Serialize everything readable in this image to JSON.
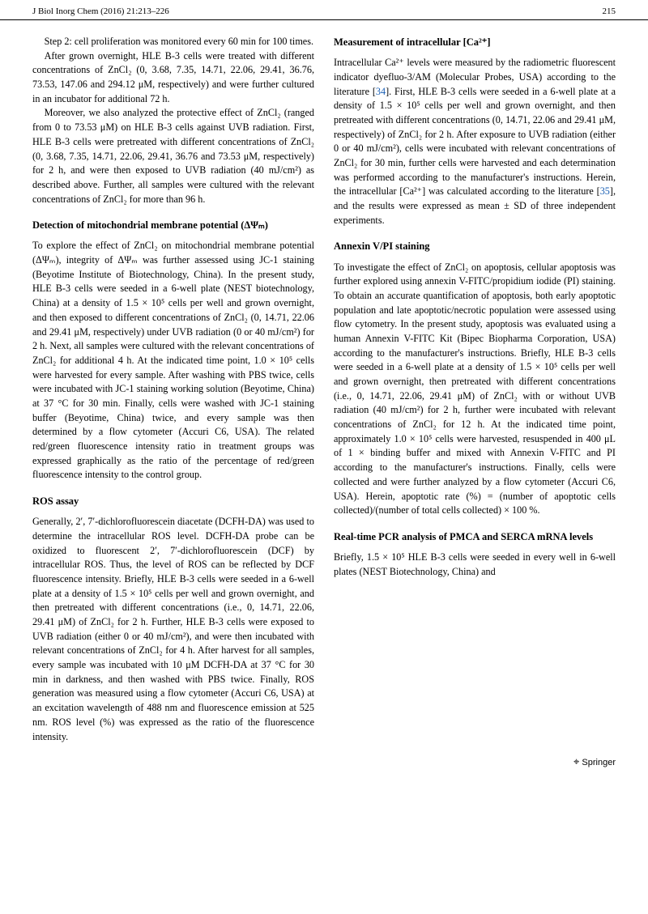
{
  "header": {
    "journal": "J Biol Inorg Chem (2016) 21:213–226",
    "page": "215"
  },
  "paragraphs": {
    "step2": "Step 2: cell proliferation was monitored every 60 min for 100 times.",
    "p1": "After grown overnight, HLE B-3 cells were treated with different concentrations of ZnCl₂ (0, 3.68, 7.35, 14.71, 22.06, 29.41, 36.76, 73.53, 147.06 and 294.12 μM, respectively) and were further cultured in an incubator for additional 72 h.",
    "p2": "Moreover, we also analyzed the protective effect of ZnCl₂ (ranged from 0 to 73.53 μM) on HLE B-3 cells against UVB radiation. First, HLE B-3 cells were pretreated with different concentrations of ZnCl₂ (0, 3.68, 7.35, 14.71, 22.06, 29.41, 36.76 and 73.53 μM, respectively) for 2 h, and were then exposed to UVB radiation (40 mJ/cm²) as described above. Further, all samples were cultured with the relevant concentrations of ZnCl₂ for more than 96 h.",
    "h1": "Detection of mitochondrial membrane potential (ΔΨₘ)",
    "p3": "To explore the effect of ZnCl₂ on mitochondrial membrane potential (ΔΨₘ), integrity of ΔΨₘ was further assessed using JC-1 staining (Beyotime Institute of Biotechnology, China). In the present study, HLE B-3 cells were seeded in a 6-well plate (NEST biotechnology, China) at a density of 1.5 × 10⁵ cells per well and grown overnight, and then exposed to different concentrations of ZnCl₂ (0, 14.71, 22.06 and 29.41 μM, respectively) under UVB radiation (0 or 40 mJ/cm²) for 2 h. Next, all samples were cultured with the relevant concentrations of ZnCl₂ for additional 4 h. At the indicated time point, 1.0 × 10⁵ cells were harvested for every sample. After washing with PBS twice, cells were incubated with JC-1 staining working solution (Beyotime, China) at 37 °C for 30 min. Finally, cells were washed with JC-1 staining buffer (Beyotime, China) twice, and every sample was then determined by a flow cytometer (Accuri C6, USA). The related red/green fluorescence intensity ratio in treatment groups was expressed graphically as the ratio of the percentage of red/green fluorescence intensity to the control group.",
    "h2": "ROS assay",
    "p4a": "Generally, 2′, 7′-dichlorofluorescein diacetate (DCFH-DA) was used to determine the intracellular ROS level. DCFH-DA probe can be oxidized to fluorescent 2′, 7′-dichlorofluorescein (DCF) by intracellular ROS. Thus, the level of ROS can be reflected by DCF fluorescence intensity. Briefly, HLE B-3 cells were seeded in a 6-well plate at a density of 1.5 × 10⁵ cells per well and grown overnight, and then pretreated with different concentrations (i.e., 0, 14.71, 22.06, 29.41 μM) of ZnCl₂ for 2 h. Further, HLE B-3 cells were exposed to UVB radiation (either 0 or 40 mJ/cm²), and were then incubated with relevant concentrations of ZnCl₂ for 4 h. After harvest for all samples, every sample was ",
    "p4b": "incubated with 10 μM DCFH-DA at 37 °C for 30 min in darkness, and then washed with PBS twice. Finally, ROS generation was measured using a flow cytometer (Accuri C6, USA) at an excitation wavelength of 488 nm and fluorescence emission at 525 nm. ROS level (%) was expressed as the ratio of the fluorescence intensity.",
    "h3": "Measurement of intracellular [Ca²⁺]",
    "p5a": "Intracellular Ca²⁺ levels were measured by the radiometric fluorescent indicator dyefluo-3/AM (Molecular Probes, USA) according to the literature [",
    "ref34": "34",
    "p5b": "]. First, HLE B-3 cells were seeded in a 6-well plate at a density of 1.5 × 10⁵ cells per well and grown overnight, and then pretreated with different concentrations (0, 14.71, 22.06 and 29.41 μM, respectively) of ZnCl₂ for 2 h. After exposure to UVB radiation (either 0 or 40 mJ/cm²), cells were incubated with relevant concentrations of ZnCl₂ for 30 min, further cells were harvested and each determination was performed according to the manufacturer's instructions. Herein, the intracellular [Ca²⁺] was calculated according to the literature [",
    "ref35": "35",
    "p5c": "], and the results were expressed as mean ± SD of three independent experiments.",
    "h4": "Annexin V/PI staining",
    "p6": "To investigate the effect of ZnCl₂ on apoptosis, cellular apoptosis was further explored using annexin V-FITC/propidium iodide (PI) staining. To obtain an accurate quantification of apoptosis, both early apoptotic population and late apoptotic/necrotic population were assessed using flow cytometry. In the present study, apoptosis was evaluated using a human Annexin V-FITC Kit (Bipec Biopharma Corporation, USA) according to the manufacturer's instructions. Briefly, HLE B-3 cells were seeded in a 6-well plate at a density of 1.5 × 10⁵ cells per well and grown overnight, then pretreated with different concentrations (i.e., 0, 14.71, 22.06, 29.41 μM) of ZnCl₂ with or without UVB radiation (40 mJ/cm²) for 2 h, further were incubated with relevant concentrations of ZnCl₂ for 12 h. At the indicated time point, approximately 1.0 × 10⁵ cells were harvested, resuspended in 400 μL of 1 × binding buffer and mixed with Annexin V-FITC and PI according to the manufacturer's instructions. Finally, cells were collected and were further analyzed by a flow cytometer (Accuri C6, USA). Herein, apoptotic rate (%) = (number of apoptotic cells collected)/(number of total cells collected) × 100 %.",
    "h5": "Real-time PCR analysis of PMCA and SERCA mRNA levels",
    "p7": "Briefly, 1.5 × 10⁵ HLE B-3 cells were seeded in every well in 6-well plates (NEST Biotechnology, China) and"
  },
  "footer": {
    "publisher": "Springer"
  },
  "refcolor": "#1a5fb4",
  "text_color": "#000000",
  "background": "#ffffff"
}
